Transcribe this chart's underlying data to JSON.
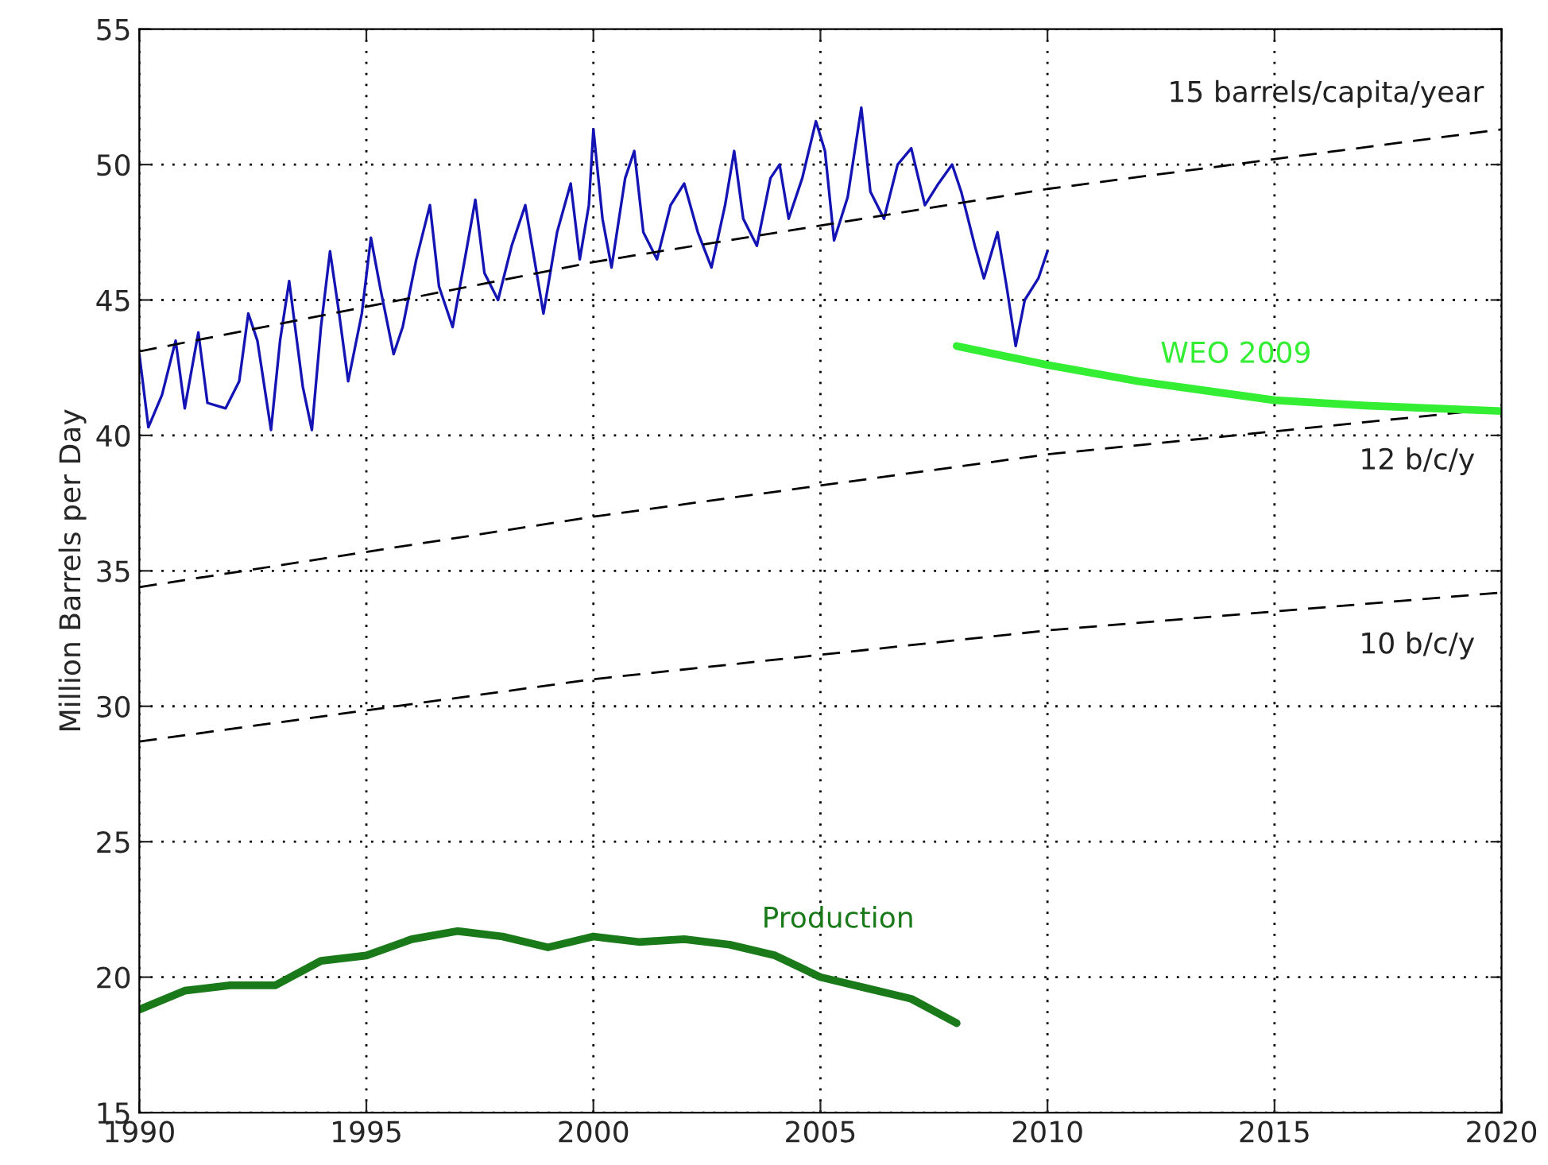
{
  "chart_data": {
    "type": "line",
    "ylabel": "Million Barrels per Day",
    "xlim": [
      1990,
      2020
    ],
    "xticks": [
      1990,
      1995,
      2000,
      2005,
      2010,
      2015,
      2020
    ],
    "ylim": [
      15,
      55
    ],
    "yticks": [
      15,
      20,
      25,
      30,
      35,
      40,
      45,
      50,
      55
    ],
    "grid": true,
    "marker": "none",
    "series": [
      {
        "color": "#1414b4",
        "line_style": "solid",
        "x": [
          1990.0,
          1990.2,
          1990.5,
          1990.8,
          1991.0,
          1991.3,
          1991.5,
          1991.9,
          1992.2,
          1992.4,
          1992.6,
          1992.9,
          1993.1,
          1993.3,
          1993.6,
          1993.8,
          1994.0,
          1994.2,
          1994.4,
          1994.6,
          1994.9,
          1995.1,
          1995.3,
          1995.6,
          1995.8,
          1996.1,
          1996.4,
          1996.6,
          1996.9,
          1997.2,
          1997.4,
          1997.6,
          1997.9,
          1998.2,
          1998.5,
          1998.7,
          1998.9,
          1999.2,
          1999.5,
          1999.7,
          1999.9,
          2000.0,
          2000.2,
          2000.4,
          2000.7,
          2000.9,
          2001.1,
          2001.4,
          2001.7,
          2002.0,
          2002.3,
          2002.6,
          2002.9,
          2003.1,
          2003.3,
          2003.6,
          2003.9,
          2004.1,
          2004.3,
          2004.6,
          2004.9,
          2005.1,
          2005.3,
          2005.6,
          2005.9,
          2006.1,
          2006.4,
          2006.7,
          2007.0,
          2007.3,
          2007.6,
          2007.9,
          2008.1,
          2008.4,
          2008.6,
          2008.9,
          2009.1,
          2009.3,
          2009.5,
          2009.8,
          2010.0
        ],
        "values": [
          43,
          40.3,
          41.5,
          43.5,
          41,
          43.8,
          41.2,
          41.0,
          42.0,
          44.5,
          43.5,
          40.2,
          43.5,
          45.7,
          41.8,
          40.2,
          44,
          46.8,
          44.5,
          42,
          44.5,
          47.3,
          45.5,
          43,
          44,
          46.5,
          48.5,
          45.5,
          44,
          46.8,
          48.7,
          46.0,
          45.0,
          47,
          48.5,
          46.5,
          44.5,
          47.5,
          49.3,
          46.5,
          48.5,
          51.3,
          48,
          46.2,
          49.5,
          50.5,
          47.5,
          46.5,
          48.5,
          49.3,
          47.5,
          46.2,
          48.5,
          50.5,
          48.0,
          47.0,
          49.5,
          50.0,
          48.0,
          49.5,
          51.6,
          50.5,
          47.2,
          48.8,
          52.1,
          49.0,
          48.0,
          50.0,
          50.6,
          48.5,
          49.3,
          50.0,
          49.0,
          47.0,
          45.8,
          47.5,
          45.5,
          43.3,
          45.0,
          45.8,
          46.8
        ]
      },
      {
        "name": "15 barrels/capita/year",
        "color": "#000000",
        "line_style": "dashed",
        "x": [
          1990,
          2000,
          2010,
          2020
        ],
        "values": [
          43.1,
          46.4,
          49.1,
          51.3
        ]
      },
      {
        "name": "12 b/c/y",
        "color": "#000000",
        "line_style": "dashed",
        "x": [
          1990,
          2000,
          2010,
          2020
        ],
        "values": [
          34.4,
          37.0,
          39.3,
          41.0
        ]
      },
      {
        "name": "10 b/c/y",
        "color": "#000000",
        "line_style": "dashed",
        "x": [
          1990,
          2000,
          2010,
          2020
        ],
        "values": [
          28.7,
          31.0,
          32.8,
          34.2
        ]
      },
      {
        "name": "WEO 2009",
        "color": "#33ee33",
        "line_style": "solid",
        "x": [
          2008,
          2010,
          2012,
          2015,
          2017,
          2020
        ],
        "values": [
          43.3,
          42.6,
          42.0,
          41.3,
          41.1,
          40.9
        ]
      },
      {
        "name": "Production",
        "color": "#1a7a1a",
        "line_style": "solid",
        "x": [
          1990,
          1991,
          1992,
          1993,
          1994,
          1995,
          1996,
          1997,
          1998,
          1999,
          2000,
          2001,
          2002,
          2003,
          2004,
          2005,
          2006,
          2007,
          2008
        ],
        "values": [
          18.8,
          19.5,
          19.7,
          19.7,
          20.6,
          20.8,
          21.4,
          21.7,
          21.5,
          21.1,
          21.5,
          21.3,
          21.4,
          21.2,
          20.8,
          20.0,
          19.6,
          19.2,
          18.3
        ]
      }
    ]
  }
}
